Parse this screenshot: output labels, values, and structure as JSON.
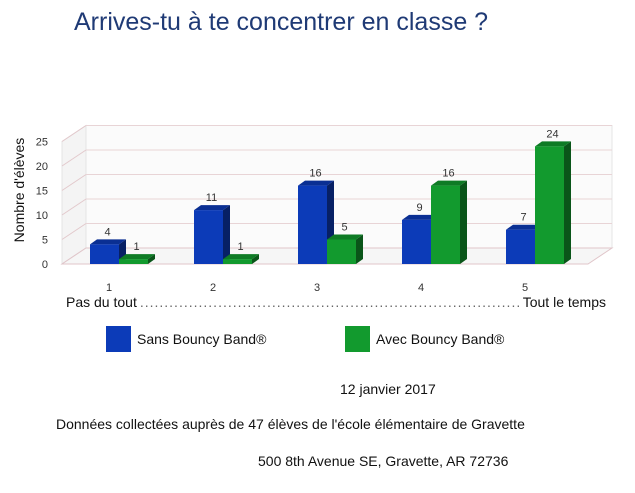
{
  "chart_data": {
    "type": "bar",
    "title": "Arrives-tu à te concentrer en classe ?",
    "ylabel": "Nombre d'élèves",
    "xlabel": "",
    "categories": [
      "1",
      "2",
      "3",
      "4",
      "5"
    ],
    "series": [
      {
        "name": "Sans Bouncy Band®",
        "values": [
          4,
          11,
          16,
          9,
          7
        ],
        "color": "#0c3bb8"
      },
      {
        "name": "Avec Bouncy Band®",
        "values": [
          1,
          1,
          5,
          16,
          24
        ],
        "color": "#129a2e"
      }
    ],
    "ylim": [
      0,
      25
    ],
    "yticks": [
      0,
      5,
      10,
      15,
      20,
      25
    ],
    "grid": true,
    "style": "3d",
    "scale_labels": {
      "low": "Pas du tout",
      "high": "Tout le temps"
    }
  },
  "legend": {
    "items": [
      {
        "label": "Sans Bouncy Band®",
        "color": "#0c3bb8"
      },
      {
        "label": "Avec Bouncy Band®",
        "color": "#129a2e"
      }
    ]
  },
  "notes": {
    "date": "12 janvier 2017",
    "source": "Données collectées auprès de 47 élèves de l'école élémentaire de Gravette",
    "address": "500 8th Avenue SE, Gravette, AR 72736"
  }
}
